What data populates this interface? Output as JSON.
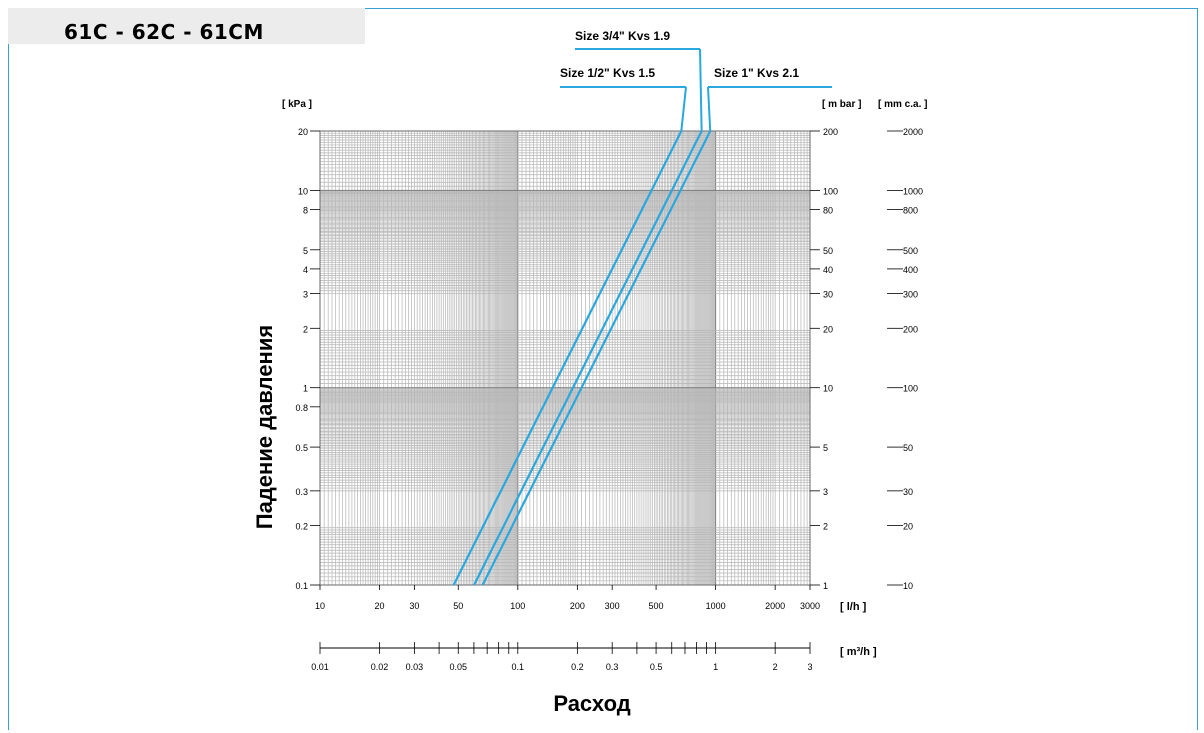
{
  "page_title": "61C - 62C - 61CM",
  "chart_data": {
    "type": "line",
    "xscale": "log",
    "yscale": "log",
    "ylabel": "Падение давления",
    "xlabel": "Расход",
    "units": {
      "left": "[ kPa ]",
      "right_mbar": "[ m bar ]",
      "right_mmca": "[ mm c.a. ]",
      "x_lh": "[ l/h ]",
      "x_m3h": "[ m³/h ]"
    },
    "xlim": [
      10,
      3000
    ],
    "ylim": [
      0.1,
      20
    ],
    "grid": true,
    "legend": "top-right, callout labels",
    "x_ticks": [
      {
        "v": 10,
        "label": "10"
      },
      {
        "v": 20,
        "label": "20"
      },
      {
        "v": 30,
        "label": "30"
      },
      {
        "v": 50,
        "label": "50"
      },
      {
        "v": 100,
        "label": "100"
      },
      {
        "v": 200,
        "label": "200"
      },
      {
        "v": 300,
        "label": "300"
      },
      {
        "v": 500,
        "label": "500"
      },
      {
        "v": 1000,
        "label": "1000"
      },
      {
        "v": 2000,
        "label": "2000"
      },
      {
        "v": 3000,
        "label": "3000"
      }
    ],
    "y_ticks": [
      {
        "v": 20,
        "label": "20"
      },
      {
        "v": 10,
        "label": "10"
      },
      {
        "v": 8,
        "label": "8"
      },
      {
        "v": 5,
        "label": "5"
      },
      {
        "v": 4,
        "label": "4"
      },
      {
        "v": 3,
        "label": "3"
      },
      {
        "v": 2,
        "label": "2"
      },
      {
        "v": 1,
        "label": "1"
      },
      {
        "v": 0.8,
        "label": "0.8"
      },
      {
        "v": 0.5,
        "label": "0.5"
      },
      {
        "v": 0.3,
        "label": "0.3"
      },
      {
        "v": 0.2,
        "label": "0.2"
      },
      {
        "v": 0.1,
        "label": "0.1"
      }
    ],
    "y_ticks_mbar": [
      {
        "v": 20,
        "label": "200"
      },
      {
        "v": 10,
        "label": "100"
      },
      {
        "v": 8,
        "label": "80"
      },
      {
        "v": 5,
        "label": "50"
      },
      {
        "v": 4,
        "label": "40"
      },
      {
        "v": 3,
        "label": "30"
      },
      {
        "v": 2,
        "label": "20"
      },
      {
        "v": 1,
        "label": "10"
      },
      {
        "v": 0.5,
        "label": "5"
      },
      {
        "v": 0.3,
        "label": "3"
      },
      {
        "v": 0.2,
        "label": "2"
      },
      {
        "v": 0.1,
        "label": "1"
      }
    ],
    "y_ticks_mmca": [
      {
        "v": 20,
        "label": "2000"
      },
      {
        "v": 10,
        "label": "1000"
      },
      {
        "v": 8,
        "label": "800"
      },
      {
        "v": 5,
        "label": "500"
      },
      {
        "v": 4,
        "label": "400"
      },
      {
        "v": 3,
        "label": "300"
      },
      {
        "v": 2,
        "label": "200"
      },
      {
        "v": 1,
        "label": "100"
      },
      {
        "v": 0.5,
        "label": "50"
      },
      {
        "v": 0.3,
        "label": "30"
      },
      {
        "v": 0.2,
        "label": "20"
      },
      {
        "v": 0.1,
        "label": "10"
      }
    ],
    "m3h_ticks": [
      {
        "v": 0.01,
        "label": "0.01"
      },
      {
        "v": 0.02,
        "label": "0.02"
      },
      {
        "v": 0.03,
        "label": "0.03"
      },
      {
        "v": 0.04,
        "label": ""
      },
      {
        "v": 0.05,
        "label": "0.05"
      },
      {
        "v": 0.06,
        "label": ""
      },
      {
        "v": 0.07,
        "label": ""
      },
      {
        "v": 0.08,
        "label": ""
      },
      {
        "v": 0.09,
        "label": ""
      },
      {
        "v": 0.1,
        "label": "0.1"
      },
      {
        "v": 0.2,
        "label": "0.2"
      },
      {
        "v": 0.3,
        "label": "0.3"
      },
      {
        "v": 0.4,
        "label": ""
      },
      {
        "v": 0.5,
        "label": "0.5"
      },
      {
        "v": 0.6,
        "label": ""
      },
      {
        "v": 0.7,
        "label": ""
      },
      {
        "v": 0.8,
        "label": ""
      },
      {
        "v": 0.9,
        "label": ""
      },
      {
        "v": 1,
        "label": "1"
      },
      {
        "v": 2,
        "label": "2"
      },
      {
        "v": 3,
        "label": "3"
      }
    ],
    "series": [
      {
        "name": "Size 1/2\" Kvs 1.5",
        "color": "#29a8e0",
        "kvs": 1.5,
        "x": [
          47.4,
          670.8
        ],
        "y": [
          0.1,
          20
        ]
      },
      {
        "name": "Size 3/4\" Kvs 1.9",
        "color": "#29a8e0",
        "kvs": 1.9,
        "x": [
          60.1,
          849.7
        ],
        "y": [
          0.1,
          20
        ]
      },
      {
        "name": "Size 1\" Kvs 2.1",
        "color": "#29a8e0",
        "kvs": 2.1,
        "x": [
          66.4,
          939.1
        ],
        "y": [
          0.1,
          20
        ]
      }
    ]
  }
}
